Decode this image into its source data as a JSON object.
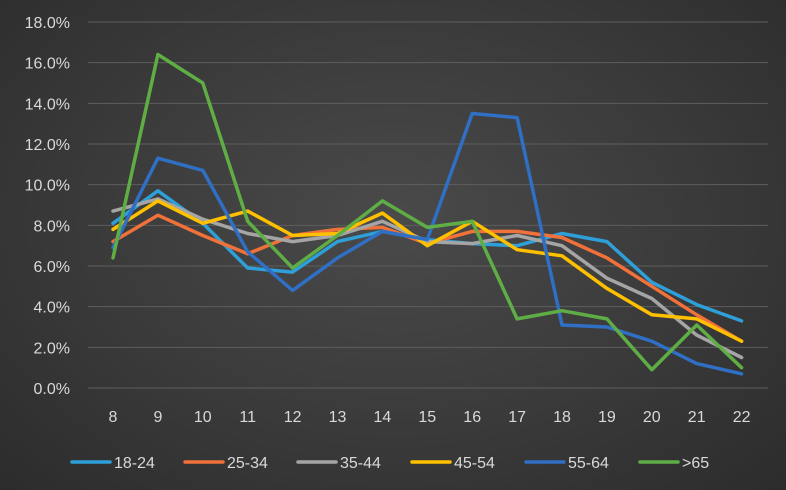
{
  "chart_data": {
    "type": "line",
    "title": "",
    "xlabel": "",
    "ylabel": "",
    "x": [
      8,
      9,
      10,
      11,
      12,
      13,
      14,
      15,
      16,
      17,
      18,
      19,
      20,
      21,
      22
    ],
    "ylim": [
      0,
      18
    ],
    "yticks": [
      0,
      2,
      4,
      6,
      8,
      10,
      12,
      14,
      16,
      18
    ],
    "ytick_labels": [
      "0.0%",
      "2.0%",
      "4.0%",
      "6.0%",
      "8.0%",
      "10.0%",
      "12.0%",
      "14.0%",
      "16.0%",
      "18.0%"
    ],
    "grid": "horizontal",
    "legend_position": "bottom",
    "series": [
      {
        "name": "18-24",
        "color": "#2e9fd8",
        "values": [
          8.1,
          9.7,
          8.1,
          5.9,
          5.7,
          7.2,
          7.7,
          7.3,
          7.1,
          7.0,
          7.6,
          7.2,
          5.2,
          4.1,
          3.3
        ]
      },
      {
        "name": "25-34",
        "color": "#f0713a",
        "values": [
          7.2,
          8.5,
          7.5,
          6.6,
          7.5,
          7.8,
          7.9,
          7.1,
          7.7,
          7.7,
          7.4,
          6.4,
          5.0,
          3.6,
          2.3
        ]
      },
      {
        "name": "35-44",
        "color": "#a5a5a5",
        "values": [
          8.7,
          9.3,
          8.3,
          7.6,
          7.2,
          7.5,
          8.2,
          7.2,
          7.1,
          7.5,
          7.0,
          5.4,
          4.4,
          2.6,
          1.5
        ]
      },
      {
        "name": "45-54",
        "color": "#ffc000",
        "values": [
          7.8,
          9.2,
          8.1,
          8.7,
          7.5,
          7.6,
          8.6,
          7.0,
          8.2,
          6.8,
          6.5,
          4.9,
          3.6,
          3.4,
          2.3
        ]
      },
      {
        "name": "55-64",
        "color": "#2f6fc4",
        "values": [
          6.9,
          11.3,
          10.7,
          6.7,
          4.8,
          6.4,
          7.7,
          7.3,
          13.5,
          13.3,
          3.1,
          3.0,
          2.3,
          1.2,
          0.7
        ]
      },
      {
        "name": ">65",
        "color": "#5fad45",
        "values": [
          6.4,
          16.4,
          15.0,
          8.2,
          5.9,
          7.5,
          9.2,
          7.9,
          8.2,
          3.4,
          3.8,
          3.4,
          0.9,
          3.1,
          1.0
        ]
      }
    ]
  }
}
